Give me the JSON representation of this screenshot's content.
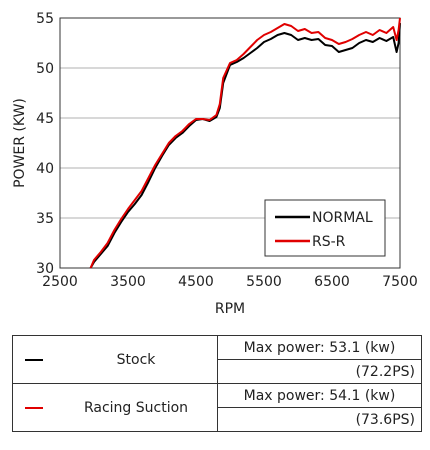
{
  "chart_data": {
    "type": "line",
    "title": "",
    "xlabel": "RPM",
    "ylabel": "POWER (KW)",
    "xlim": [
      2500,
      7500
    ],
    "ylim": [
      30,
      55
    ],
    "xticks": [
      2500,
      3500,
      4500,
      5500,
      6500,
      7500
    ],
    "yticks": [
      30,
      35,
      40,
      45,
      50,
      55
    ],
    "grid": "horizontal",
    "legend_position": "bottom-right",
    "series": [
      {
        "name": "NORMAL",
        "color": "#000000",
        "x": [
          2950,
          3000,
          3100,
          3200,
          3300,
          3400,
          3500,
          3600,
          3700,
          3800,
          3900,
          4000,
          4100,
          4200,
          4300,
          4400,
          4500,
          4600,
          4700,
          4800,
          4850,
          4900,
          5000,
          5100,
          5200,
          5300,
          5400,
          5500,
          5600,
          5700,
          5800,
          5900,
          6000,
          6100,
          6200,
          6300,
          6400,
          6500,
          6600,
          6700,
          6800,
          6900,
          7000,
          7100,
          7200,
          7300,
          7400,
          7450,
          7480,
          7500
        ],
        "y": [
          30,
          30.6,
          31.4,
          32.2,
          33.5,
          34.6,
          35.6,
          36.4,
          37.3,
          38.6,
          40.0,
          41.2,
          42.3,
          43.0,
          43.5,
          44.2,
          44.8,
          44.9,
          44.7,
          45.1,
          46.0,
          48.5,
          50.3,
          50.6,
          51.0,
          51.5,
          52.0,
          52.6,
          52.9,
          53.3,
          53.5,
          53.3,
          52.8,
          53.0,
          52.8,
          52.9,
          52.3,
          52.2,
          51.6,
          51.8,
          52.0,
          52.5,
          52.8,
          52.6,
          53.0,
          52.7,
          53.1,
          51.6,
          52.5,
          54.5
        ]
      },
      {
        "name": "RS-R",
        "color": "#e00000",
        "x": [
          2950,
          3000,
          3100,
          3200,
          3300,
          3400,
          3500,
          3600,
          3700,
          3800,
          3900,
          4000,
          4100,
          4200,
          4300,
          4400,
          4500,
          4600,
          4700,
          4800,
          4850,
          4900,
          5000,
          5100,
          5200,
          5300,
          5400,
          5500,
          5600,
          5700,
          5800,
          5900,
          6000,
          6100,
          6200,
          6300,
          6400,
          6500,
          6600,
          6700,
          6800,
          6900,
          7000,
          7100,
          7200,
          7300,
          7400,
          7450,
          7480,
          7500
        ],
        "y": [
          30,
          30.8,
          31.6,
          32.5,
          33.8,
          34.9,
          35.9,
          36.8,
          37.7,
          39.0,
          40.3,
          41.4,
          42.5,
          43.2,
          43.7,
          44.4,
          44.9,
          44.9,
          44.8,
          45.3,
          46.4,
          49.0,
          50.5,
          50.8,
          51.4,
          52.1,
          52.8,
          53.3,
          53.6,
          54.0,
          54.4,
          54.2,
          53.7,
          53.9,
          53.5,
          53.6,
          53.0,
          52.8,
          52.4,
          52.6,
          52.9,
          53.3,
          53.6,
          53.3,
          53.8,
          53.5,
          54.1,
          52.8,
          53.8,
          55.0
        ]
      }
    ]
  },
  "table": {
    "rows": [
      {
        "name": "Stock",
        "color": "#000000",
        "max_power": "Max power: 53.1 (kw)",
        "ps": "(72.2PS)"
      },
      {
        "name": "Racing Suction",
        "color": "#e00000",
        "max_power": "Max power: 54.1 (kw)",
        "ps": "(73.6PS)"
      }
    ]
  }
}
